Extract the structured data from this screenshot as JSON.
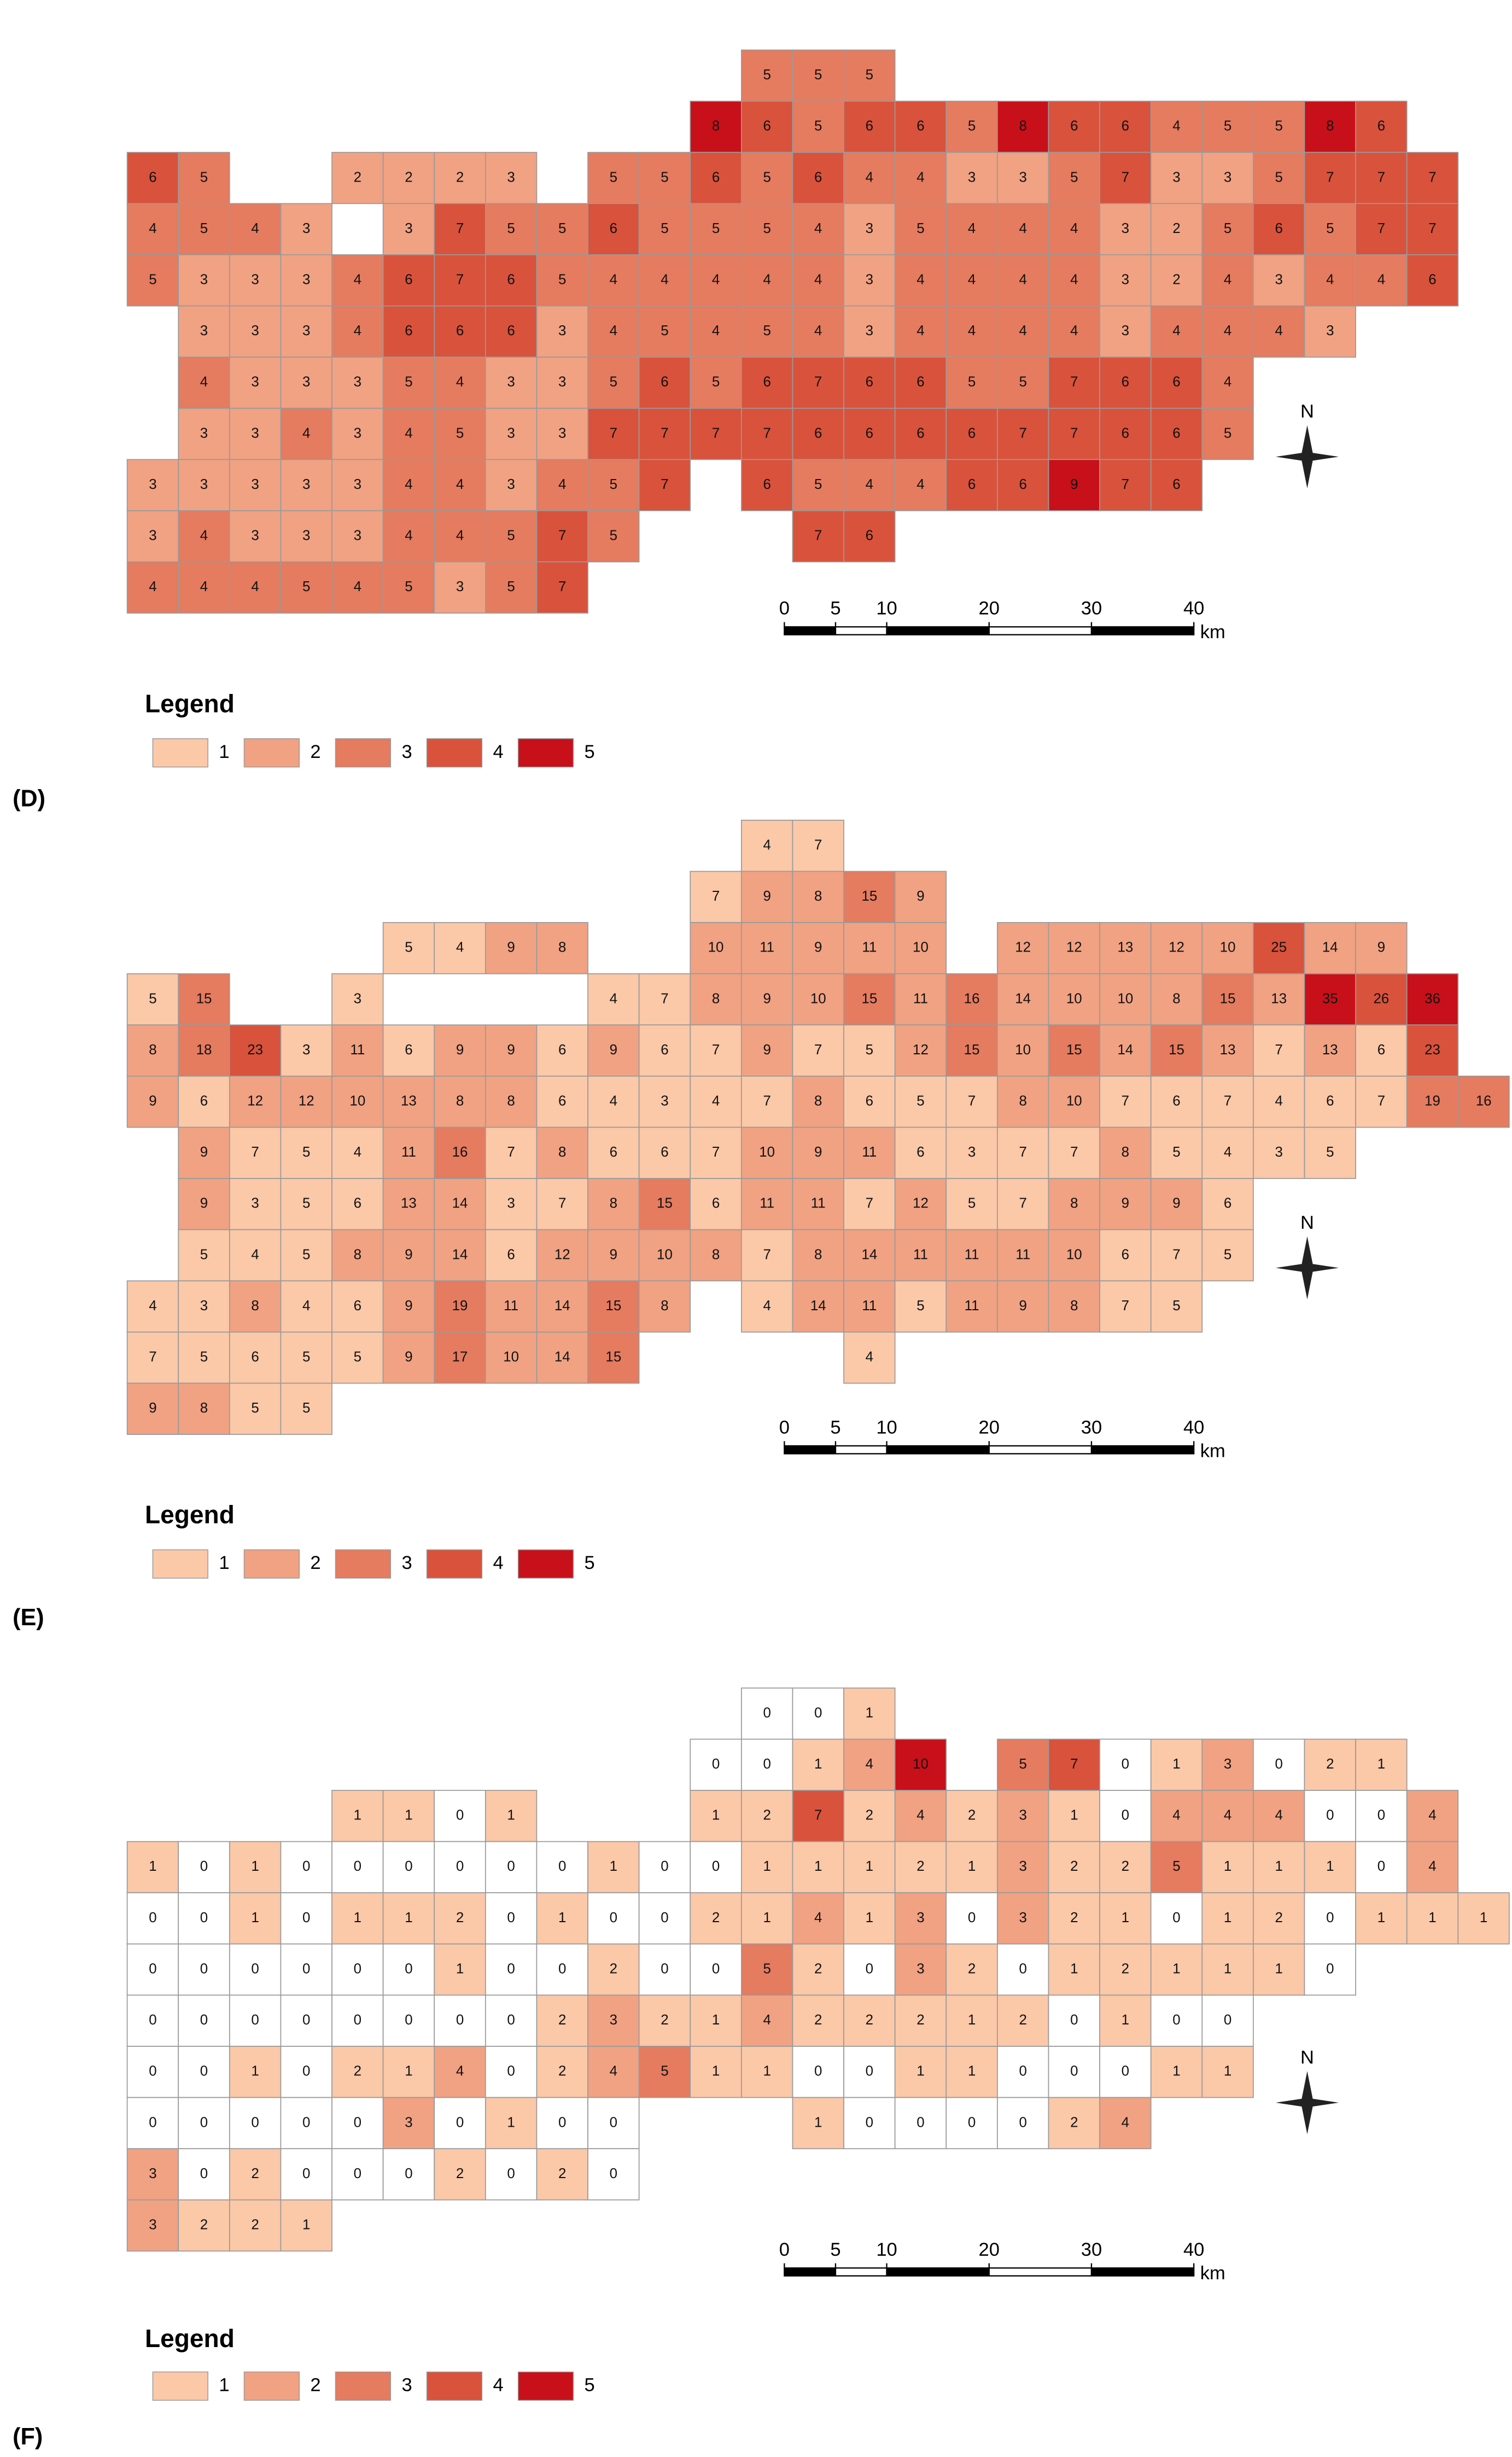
{
  "panels": [
    {
      "label": "(D)",
      "rows": [
        [
          null,
          null,
          null,
          null,
          null,
          null,
          null,
          null,
          null,
          null,
          null,
          null,
          5,
          5,
          5,
          null,
          null,
          null,
          null,
          null,
          null,
          null,
          null,
          null,
          null,
          null,
          null
        ],
        [
          null,
          null,
          null,
          null,
          null,
          null,
          null,
          null,
          null,
          null,
          null,
          8,
          6,
          5,
          6,
          6,
          5,
          8,
          6,
          6,
          4,
          5,
          5,
          8,
          6,
          null,
          null
        ],
        [
          6,
          5,
          null,
          null,
          2,
          2,
          2,
          3,
          null,
          5,
          5,
          6,
          5,
          6,
          4,
          4,
          3,
          3,
          5,
          7,
          3,
          3,
          5,
          7,
          7,
          7,
          null
        ],
        [
          4,
          5,
          4,
          3,
          null,
          3,
          7,
          5,
          5,
          6,
          5,
          5,
          5,
          4,
          3,
          5,
          4,
          4,
          4,
          3,
          2,
          5,
          6,
          5,
          7,
          7,
          null
        ],
        [
          5,
          3,
          3,
          3,
          4,
          6,
          7,
          6,
          5,
          4,
          4,
          4,
          4,
          4,
          3,
          4,
          4,
          4,
          4,
          3,
          2,
          4,
          3,
          4,
          4,
          6,
          null
        ],
        [
          null,
          3,
          3,
          3,
          4,
          6,
          6,
          6,
          3,
          4,
          5,
          4,
          5,
          4,
          3,
          4,
          4,
          4,
          4,
          3,
          4,
          4,
          4,
          3,
          null,
          null,
          null
        ],
        [
          null,
          4,
          3,
          3,
          3,
          5,
          4,
          3,
          3,
          5,
          6,
          5,
          6,
          7,
          6,
          6,
          5,
          5,
          7,
          6,
          6,
          4,
          null,
          null,
          null,
          null,
          null
        ],
        [
          null,
          3,
          3,
          4,
          3,
          4,
          5,
          3,
          3,
          7,
          7,
          7,
          7,
          6,
          6,
          6,
          6,
          7,
          7,
          6,
          6,
          5,
          null,
          null,
          null,
          null,
          null
        ],
        [
          3,
          3,
          3,
          3,
          3,
          4,
          4,
          3,
          4,
          5,
          7,
          null,
          6,
          5,
          4,
          4,
          6,
          6,
          9,
          7,
          6,
          null,
          null,
          null,
          null,
          null,
          null
        ],
        [
          3,
          4,
          3,
          3,
          3,
          4,
          4,
          5,
          7,
          5,
          null,
          null,
          null,
          7,
          6,
          null,
          null,
          null,
          null,
          null,
          null,
          null,
          null,
          null,
          null,
          null,
          null
        ],
        [
          4,
          4,
          4,
          5,
          4,
          5,
          3,
          5,
          7,
          null,
          null,
          null,
          null,
          null,
          null,
          null,
          null,
          null,
          null,
          null,
          null,
          null,
          null,
          null,
          null,
          null,
          null
        ]
      ],
      "legend": {
        "title": "Legend",
        "items": [
          {
            "label": "1",
            "color": "#fbc8a8"
          },
          {
            "label": "2",
            "color": "#f0a283"
          },
          {
            "label": "3",
            "color": "#e57b5f"
          },
          {
            "label": "4",
            "color": "#d9523c"
          },
          {
            "label": "5",
            "color": "#c8101a"
          }
        ]
      },
      "scale_bar": {
        "ticks": [
          0,
          5,
          10,
          20,
          30,
          40
        ],
        "unit": "km"
      },
      "north": "N"
    },
    {
      "label": "(E)",
      "rows": [
        [
          null,
          null,
          null,
          null,
          null,
          null,
          null,
          null,
          null,
          null,
          null,
          null,
          4,
          7,
          null,
          null,
          null,
          null,
          null,
          null,
          null,
          null,
          null,
          null,
          null,
          null,
          null
        ],
        [
          null,
          null,
          null,
          null,
          null,
          null,
          null,
          null,
          null,
          null,
          null,
          7,
          9,
          8,
          15,
          9,
          null,
          null,
          null,
          null,
          null,
          null,
          null,
          null,
          null,
          null,
          null
        ],
        [
          null,
          null,
          null,
          null,
          null,
          5,
          4,
          9,
          8,
          null,
          null,
          10,
          11,
          9,
          11,
          10,
          null,
          12,
          12,
          13,
          12,
          10,
          25,
          14,
          9,
          null,
          null
        ],
        [
          5,
          15,
          null,
          null,
          3,
          null,
          null,
          null,
          null,
          4,
          7,
          8,
          9,
          10,
          15,
          11,
          16,
          14,
          10,
          10,
          8,
          15,
          13,
          35,
          26,
          36,
          null
        ],
        [
          8,
          18,
          23,
          3,
          11,
          6,
          9,
          9,
          6,
          9,
          6,
          7,
          9,
          7,
          5,
          12,
          15,
          10,
          15,
          14,
          15,
          13,
          7,
          13,
          6,
          23,
          null
        ],
        [
          9,
          6,
          12,
          12,
          10,
          13,
          8,
          8,
          6,
          4,
          3,
          4,
          7,
          8,
          6,
          5,
          7,
          8,
          10,
          7,
          6,
          7,
          4,
          6,
          7,
          19,
          16
        ],
        [
          null,
          9,
          7,
          5,
          4,
          11,
          16,
          7,
          8,
          6,
          6,
          7,
          10,
          9,
          11,
          6,
          3,
          7,
          7,
          8,
          5,
          4,
          3,
          5,
          null,
          null,
          null
        ],
        [
          null,
          9,
          3,
          5,
          6,
          13,
          14,
          3,
          7,
          8,
          15,
          6,
          11,
          11,
          7,
          12,
          5,
          7,
          8,
          9,
          9,
          6,
          null,
          null,
          null,
          null,
          null
        ],
        [
          null,
          5,
          4,
          5,
          8,
          9,
          14,
          6,
          12,
          9,
          10,
          8,
          7,
          8,
          14,
          11,
          11,
          11,
          10,
          6,
          7,
          5,
          null,
          null,
          null,
          null,
          null
        ],
        [
          4,
          3,
          8,
          4,
          6,
          9,
          19,
          11,
          14,
          15,
          8,
          null,
          4,
          14,
          11,
          5,
          11,
          9,
          8,
          7,
          5,
          null,
          null,
          null,
          null,
          null,
          null
        ],
        [
          7,
          5,
          6,
          5,
          5,
          9,
          17,
          10,
          14,
          15,
          null,
          null,
          null,
          null,
          4,
          null,
          null,
          null,
          null,
          null,
          null,
          null,
          null,
          null,
          null,
          null,
          null
        ],
        [
          9,
          8,
          5,
          5,
          null,
          null,
          null,
          null,
          null,
          null,
          null,
          null,
          null,
          null,
          null,
          null,
          null,
          null,
          null,
          null,
          null,
          null,
          null,
          null,
          null,
          null,
          null
        ]
      ],
      "legend": {
        "title": "Legend",
        "items": [
          {
            "label": "1",
            "color": "#fbc8a8"
          },
          {
            "label": "2",
            "color": "#f0a283"
          },
          {
            "label": "3",
            "color": "#e57b5f"
          },
          {
            "label": "4",
            "color": "#d9523c"
          },
          {
            "label": "5",
            "color": "#c8101a"
          }
        ]
      },
      "scale_bar": {
        "ticks": [
          0,
          5,
          10,
          20,
          30,
          40
        ],
        "unit": "km"
      },
      "north": "N"
    },
    {
      "label": "(F)",
      "rows": [
        [
          null,
          null,
          null,
          null,
          null,
          null,
          null,
          null,
          null,
          null,
          null,
          null,
          0,
          0,
          1,
          null,
          null,
          null,
          null,
          null,
          null,
          null,
          null,
          null,
          null,
          null,
          null
        ],
        [
          null,
          null,
          null,
          null,
          null,
          null,
          null,
          null,
          null,
          null,
          null,
          0,
          0,
          1,
          4,
          10,
          null,
          5,
          7,
          0,
          1,
          3,
          0,
          2,
          1,
          null,
          null
        ],
        [
          null,
          null,
          null,
          null,
          1,
          1,
          0,
          1,
          null,
          null,
          null,
          1,
          2,
          7,
          2,
          4,
          2,
          3,
          1,
          0,
          4,
          4,
          4,
          0,
          0,
          4,
          null
        ],
        [
          1,
          0,
          1,
          0,
          0,
          0,
          0,
          0,
          0,
          1,
          0,
          0,
          1,
          1,
          1,
          2,
          1,
          3,
          2,
          2,
          5,
          1,
          1,
          1,
          0,
          4,
          null
        ],
        [
          0,
          0,
          1,
          0,
          1,
          1,
          2,
          0,
          1,
          0,
          0,
          2,
          1,
          4,
          1,
          3,
          0,
          3,
          2,
          1,
          0,
          1,
          2,
          0,
          1,
          1,
          1
        ],
        [
          0,
          0,
          0,
          0,
          0,
          0,
          1,
          0,
          0,
          2,
          0,
          0,
          5,
          2,
          0,
          3,
          2,
          0,
          1,
          2,
          1,
          1,
          1,
          0,
          null,
          null,
          null
        ],
        [
          0,
          0,
          0,
          0,
          0,
          0,
          0,
          0,
          2,
          3,
          2,
          1,
          4,
          2,
          2,
          2,
          1,
          2,
          0,
          1,
          0,
          0,
          null,
          null,
          null,
          null,
          null
        ],
        [
          0,
          0,
          1,
          0,
          2,
          1,
          4,
          0,
          2,
          4,
          5,
          1,
          1,
          0,
          0,
          1,
          1,
          0,
          0,
          0,
          1,
          1,
          null,
          null,
          null,
          null,
          null
        ],
        [
          0,
          0,
          0,
          0,
          0,
          3,
          0,
          1,
          0,
          0,
          null,
          null,
          null,
          1,
          0,
          0,
          0,
          0,
          2,
          4,
          null,
          null,
          null,
          null,
          null,
          null,
          null
        ],
        [
          3,
          0,
          2,
          0,
          0,
          0,
          2,
          0,
          2,
          0,
          null,
          null,
          null,
          null,
          null,
          null,
          null,
          null,
          null,
          null,
          null,
          null,
          null,
          null,
          null,
          null,
          null
        ],
        [
          3,
          2,
          2,
          1,
          null,
          null,
          null,
          null,
          null,
          null,
          null,
          null,
          null,
          null,
          null,
          null,
          null,
          null,
          null,
          null,
          null,
          null,
          null,
          null,
          null,
          null,
          null
        ]
      ],
      "legend": {
        "title": "Legend",
        "items": [
          {
            "label": "1",
            "color": "#fbc8a8"
          },
          {
            "label": "2",
            "color": "#f0a283"
          },
          {
            "label": "3",
            "color": "#e57b5f"
          },
          {
            "label": "4",
            "color": "#d9523c"
          },
          {
            "label": "5",
            "color": "#c8101a"
          }
        ]
      },
      "scale_bar": {
        "ticks": [
          0,
          5,
          10,
          20,
          30,
          40
        ],
        "unit": "km"
      },
      "north": "N"
    }
  ]
}
